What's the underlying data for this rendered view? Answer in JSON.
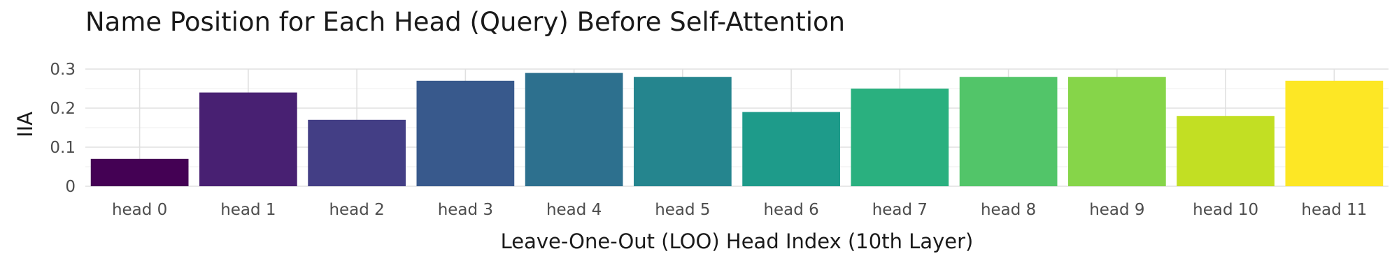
{
  "chart_data": {
    "type": "bar",
    "title": "Name Position for Each Head (Query) Before Self-Attention",
    "xlabel": "Leave-One-Out (LOO) Head Index (10th Layer)",
    "ylabel": "IIA",
    "categories": [
      "head 0",
      "head 1",
      "head 2",
      "head 3",
      "head 4",
      "head 5",
      "head 6",
      "head 7",
      "head 8",
      "head 9",
      "head 10",
      "head 11"
    ],
    "values": [
      0.07,
      0.24,
      0.17,
      0.27,
      0.29,
      0.28,
      0.19,
      0.25,
      0.28,
      0.28,
      0.18,
      0.27
    ],
    "colors": [
      "#440154",
      "#482072",
      "#433e85",
      "#38598c",
      "#2d708e",
      "#25858e",
      "#1e9b8a",
      "#2ab07f",
      "#52c569",
      "#86d549",
      "#c2df23",
      "#fde725"
    ],
    "ylim": [
      0,
      0.3
    ],
    "yticks": [
      0,
      0.1,
      0.2,
      0.3
    ],
    "ytick_labels": [
      "0",
      "0.1",
      "0.2",
      "0.3"
    ],
    "grid": true,
    "legend": "none"
  }
}
